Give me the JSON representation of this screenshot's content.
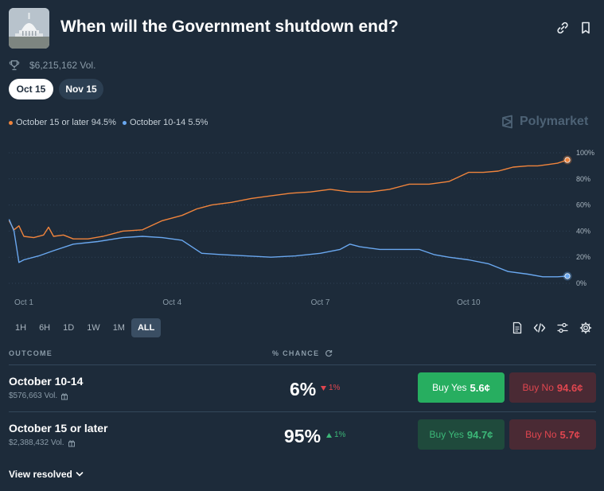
{
  "header": {
    "title": "When will the Government shutdown end?",
    "volume": "$6,215,162 Vol."
  },
  "date_tabs": [
    {
      "label": "Oct 15",
      "active": true
    },
    {
      "label": "Nov 15",
      "active": false
    }
  ],
  "legend": [
    {
      "label": "October 15 or later 94.5%",
      "color": "#f0843c"
    },
    {
      "label": "October 10-14 5.5%",
      "color": "#6aa8f0"
    }
  ],
  "brand": "Polymarket",
  "chart_data": {
    "type": "line",
    "x_ticks": [
      "Oct 1",
      "Oct 4",
      "Oct 7",
      "Oct 10"
    ],
    "y_ticks": [
      "100%",
      "80%",
      "60%",
      "40%",
      "20%",
      "0%"
    ],
    "ylim": [
      0,
      100
    ],
    "xlim": [
      0,
      11
    ],
    "grid": true,
    "series": [
      {
        "name": "October 15 or later",
        "color": "#f0843c",
        "points": [
          [
            -0.3,
            48
          ],
          [
            -0.2,
            41
          ],
          [
            -0.1,
            44
          ],
          [
            0,
            36
          ],
          [
            0.2,
            35
          ],
          [
            0.4,
            37
          ],
          [
            0.5,
            43
          ],
          [
            0.6,
            36
          ],
          [
            0.8,
            37
          ],
          [
            1,
            34
          ],
          [
            1.3,
            34
          ],
          [
            1.6,
            36
          ],
          [
            2,
            40
          ],
          [
            2.4,
            41
          ],
          [
            2.8,
            48
          ],
          [
            3.2,
            52
          ],
          [
            3.5,
            57
          ],
          [
            3.8,
            60
          ],
          [
            4.2,
            62
          ],
          [
            4.6,
            65
          ],
          [
            5,
            67
          ],
          [
            5.4,
            69
          ],
          [
            5.8,
            70
          ],
          [
            6.2,
            72
          ],
          [
            6.6,
            70
          ],
          [
            7,
            70
          ],
          [
            7.4,
            72
          ],
          [
            7.8,
            76
          ],
          [
            8.2,
            76
          ],
          [
            8.6,
            78
          ],
          [
            9,
            85
          ],
          [
            9.3,
            85
          ],
          [
            9.6,
            86
          ],
          [
            9.9,
            89
          ],
          [
            10.2,
            90
          ],
          [
            10.4,
            90
          ],
          [
            10.6,
            91
          ],
          [
            10.8,
            92
          ],
          [
            11,
            94.5
          ]
        ]
      },
      {
        "name": "October 10-14",
        "color": "#6aa8f0",
        "points": [
          [
            -0.3,
            49
          ],
          [
            -0.2,
            40
          ],
          [
            -0.1,
            16
          ],
          [
            0,
            18
          ],
          [
            0.3,
            21
          ],
          [
            0.6,
            25
          ],
          [
            1,
            30
          ],
          [
            1.5,
            32
          ],
          [
            2,
            35
          ],
          [
            2.4,
            36
          ],
          [
            2.8,
            35
          ],
          [
            3.2,
            33
          ],
          [
            3.6,
            23
          ],
          [
            4,
            22
          ],
          [
            4.5,
            21
          ],
          [
            5,
            20
          ],
          [
            5.5,
            21
          ],
          [
            6,
            23
          ],
          [
            6.4,
            26
          ],
          [
            6.6,
            30
          ],
          [
            6.8,
            28
          ],
          [
            7.2,
            26
          ],
          [
            7.6,
            26
          ],
          [
            8,
            26
          ],
          [
            8.3,
            22
          ],
          [
            8.6,
            20
          ],
          [
            9,
            18
          ],
          [
            9.4,
            15
          ],
          [
            9.8,
            9
          ],
          [
            10.2,
            7
          ],
          [
            10.5,
            5
          ],
          [
            10.8,
            5
          ],
          [
            11,
            5.5
          ]
        ]
      }
    ]
  },
  "time_ranges": [
    {
      "label": "1H",
      "active": false
    },
    {
      "label": "6H",
      "active": false
    },
    {
      "label": "1D",
      "active": false
    },
    {
      "label": "1W",
      "active": false
    },
    {
      "label": "1M",
      "active": false
    },
    {
      "label": "ALL",
      "active": true
    }
  ],
  "table": {
    "outcome_header": "OUTCOME",
    "chance_header": "% CHANCE",
    "rows": [
      {
        "name": "October 10-14",
        "volume": "$576,663 Vol.",
        "chance": "6%",
        "delta": "1%",
        "delta_dir": "down",
        "buy_yes_label": "Buy Yes",
        "buy_yes_price": "5.6¢",
        "buy_no_label": "Buy No",
        "buy_no_price": "94.6¢"
      },
      {
        "name": "October 15 or later",
        "volume": "$2,388,432 Vol.",
        "chance": "95%",
        "delta": "1%",
        "delta_dir": "up",
        "buy_yes_label": "Buy Yes",
        "buy_yes_price": "94.7¢",
        "buy_no_label": "Buy No",
        "buy_no_price": "5.7¢"
      }
    ]
  },
  "view_resolved": "View resolved"
}
